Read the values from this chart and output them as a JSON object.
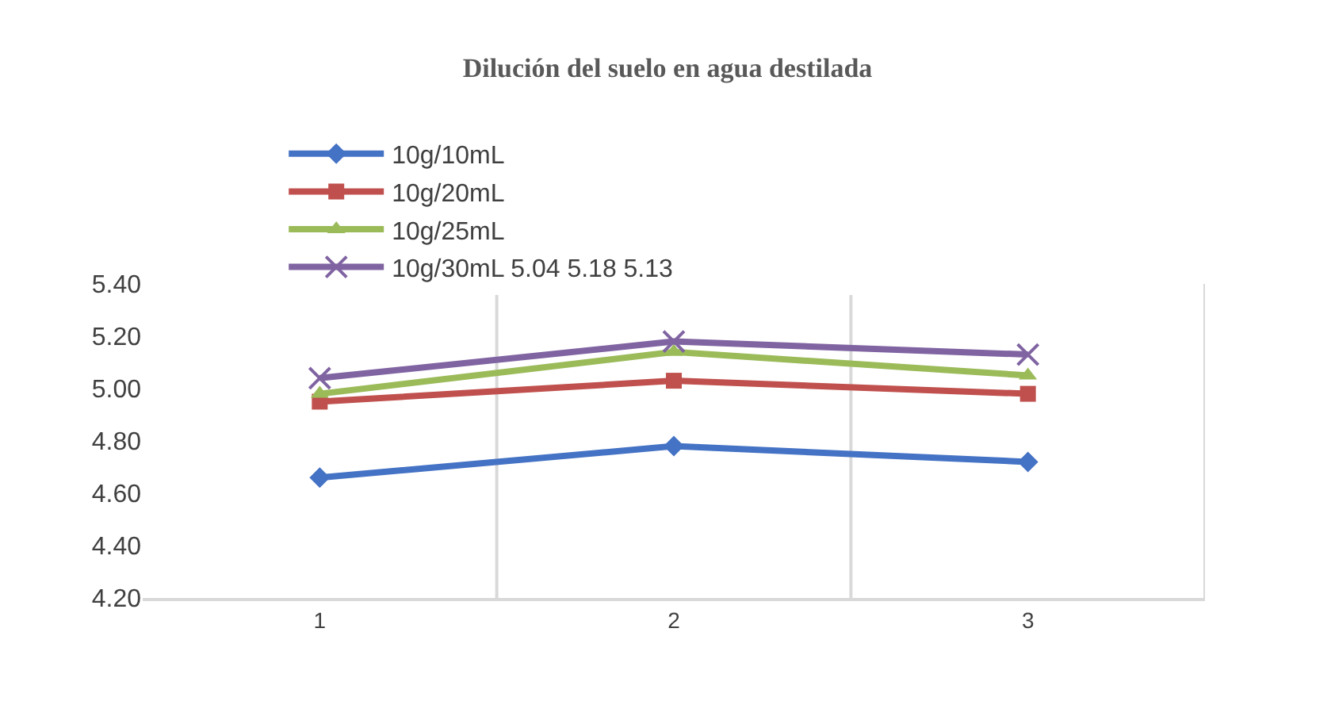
{
  "chart_data": {
    "type": "line",
    "title": "Dilución del suelo en agua destilada",
    "categories": [
      "1",
      "2",
      "3"
    ],
    "series": [
      {
        "name": "10g/10mL",
        "color": "#4472c4",
        "marker": "diamond",
        "values": [
          4.66,
          4.78,
          4.72
        ]
      },
      {
        "name": "10g/20mL",
        "color": "#c0504d",
        "marker": "square",
        "values": [
          4.95,
          5.03,
          4.98
        ]
      },
      {
        "name": "10g/25mL",
        "color": "#9bbb59",
        "marker": "triangle",
        "values": [
          4.98,
          5.14,
          5.05
        ]
      },
      {
        "name": "10g/30mL 5.04 5.18 5.13",
        "color": "#8064a2",
        "marker": "cross",
        "values": [
          5.04,
          5.18,
          5.13
        ]
      }
    ],
    "ylim": [
      4.2,
      5.4
    ],
    "yticks": [
      {
        "value": 4.2,
        "label": "4.20"
      },
      {
        "value": 4.4,
        "label": "4.40"
      },
      {
        "value": 4.6,
        "label": "4.60"
      },
      {
        "value": 4.8,
        "label": "4.80"
      },
      {
        "value": 5.0,
        "label": "5.00"
      },
      {
        "value": 5.2,
        "label": "5.20"
      },
      {
        "value": 5.4,
        "label": "5.40"
      }
    ],
    "grid": "x",
    "legend": "top",
    "line_style": "solid"
  }
}
